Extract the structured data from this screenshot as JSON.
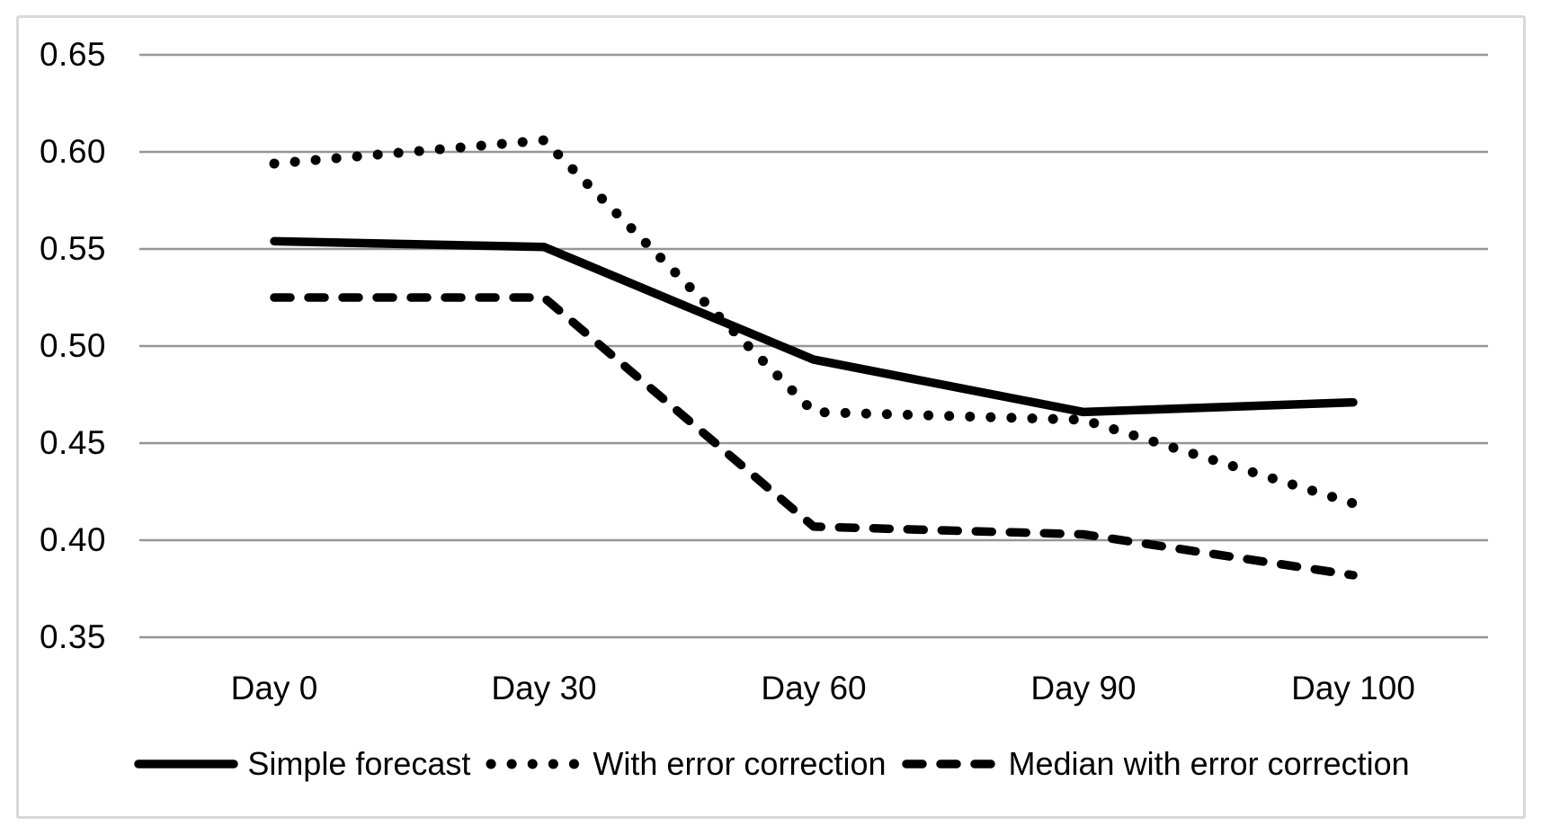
{
  "chart_data": {
    "type": "line",
    "categories": [
      "Day 0",
      "Day 30",
      "Day 60",
      "Day 90",
      "Day 100"
    ],
    "series": [
      {
        "name": "Simple forecast",
        "style": "solid",
        "values": [
          0.554,
          0.551,
          0.493,
          0.466,
          0.471
        ]
      },
      {
        "name": "With error correction",
        "style": "dotted",
        "values": [
          0.594,
          0.606,
          0.466,
          0.462,
          0.419
        ]
      },
      {
        "name": "Median with error correction",
        "style": "dashed",
        "values": [
          0.525,
          0.525,
          0.407,
          0.403,
          0.382
        ]
      }
    ],
    "y_ticks": [
      0.65,
      0.6,
      0.55,
      0.5,
      0.45,
      0.4,
      0.35
    ],
    "y_tick_labels": [
      "0.65",
      "0.60",
      "0.55",
      "0.50",
      "0.45",
      "0.40",
      "0.35"
    ],
    "ylim": [
      0.35,
      0.65
    ],
    "xlabel": "",
    "ylabel": "",
    "title": "",
    "grid": true,
    "legend_position": "bottom",
    "line_color": "#000000",
    "gridline_color": "#969696",
    "frame_color": "#d9d9d9"
  }
}
